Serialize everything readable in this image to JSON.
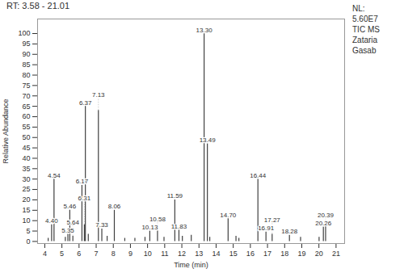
{
  "chart_data": {
    "type": "stem",
    "title": "RT: 3.58 - 21.01",
    "xlabel": "Time (min)",
    "ylabel": "Relative Abundance",
    "x": [
      4.2,
      4.4,
      4.54,
      5.2,
      5.35,
      5.46,
      5.64,
      6.17,
      6.31,
      6.37,
      6.54,
      7.13,
      7.33,
      7.64,
      8.06,
      8.67,
      9.26,
      9.85,
      10.13,
      10.58,
      10.96,
      11.59,
      11.83,
      12.03,
      12.55,
      13.3,
      13.49,
      13.63,
      14.7,
      15.16,
      15.33,
      16.44,
      16.91,
      17.27,
      18.28,
      18.93,
      20.01,
      20.26,
      20.39
    ],
    "values": [
      1.5,
      8.0,
      30.0,
      2.0,
      3.5,
      15.0,
      2.5,
      27.0,
      8.0,
      65.0,
      3.5,
      63.0,
      6.0,
      2.5,
      15.0,
      1.5,
      1.5,
      2.0,
      5.0,
      5.0,
      2.0,
      20.0,
      5.5,
      2.5,
      3.0,
      100.0,
      47.0,
      2.0,
      11.0,
      2.5,
      1.5,
      30.0,
      4.5,
      3.5,
      3.0,
      2.0,
      2.0,
      7.0,
      8.5
    ],
    "labels": [
      null,
      "4.40",
      "4.54",
      null,
      "5.35",
      "5.46",
      "5.64",
      "6.17",
      "6.31",
      "6.37",
      null,
      "7.13",
      "7.33",
      null,
      "8.06",
      null,
      null,
      null,
      "10.13",
      "10.58",
      null,
      "11.59",
      "11.83",
      null,
      null,
      "13.30",
      "13.49",
      null,
      "14.70",
      null,
      null,
      "16.44",
      "16.91",
      "17.27",
      "18.28",
      null,
      null,
      "20.26",
      "20.39"
    ],
    "color": "#404040",
    "xlim": [
      3.58,
      21.5
    ],
    "ylim": [
      -1,
      107
    ],
    "xticks": [
      4,
      5,
      6,
      7,
      8,
      9,
      10,
      11,
      12,
      13,
      14,
      15,
      16,
      17,
      18,
      19,
      20,
      21
    ],
    "yticks": [
      0,
      5,
      10,
      15,
      20,
      25,
      30,
      35,
      40,
      45,
      50,
      55,
      60,
      65,
      70,
      75,
      80,
      85,
      90,
      95,
      100
    ],
    "annotations": [
      "NL:",
      "5.60E7",
      "TIC MS",
      "Zataria",
      "Gasab"
    ],
    "grid": false
  }
}
